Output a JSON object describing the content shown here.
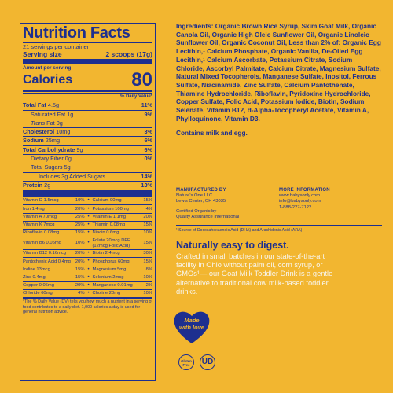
{
  "nutrition": {
    "title": "Nutrition Facts",
    "servings": "21 servings per container",
    "serving_size_label": "Serving size",
    "serving_size_value": "2 scoops (17g)",
    "amount_per_serving": "Amount per serving",
    "calories_label": "Calories",
    "calories_value": "80",
    "dv_header": "% Daily Value*",
    "rows": [
      {
        "label": "Total Fat",
        "amount": "4.5g",
        "dv": "11%",
        "bold": true,
        "indent": 0
      },
      {
        "label": "Saturated Fat",
        "amount": "1g",
        "dv": "9%",
        "bold": false,
        "indent": 1
      },
      {
        "label": "Trans",
        "amount": "Fat 0g",
        "dv": "",
        "bold": false,
        "indent": 1,
        "italic": true
      },
      {
        "label": "Cholesterol",
        "amount": "10mg",
        "dv": "3%",
        "bold": true,
        "indent": 0
      },
      {
        "label": "Sodium",
        "amount": "25mg",
        "dv": "6%",
        "bold": true,
        "indent": 0
      },
      {
        "label": "Total Carbohydrate",
        "amount": "9g",
        "dv": "6%",
        "bold": true,
        "indent": 0
      },
      {
        "label": "Dietary Fiber",
        "amount": "0g",
        "dv": "0%",
        "bold": false,
        "indent": 1
      },
      {
        "label": "Total Sugars",
        "amount": "5g",
        "dv": "",
        "bold": false,
        "indent": 1
      },
      {
        "label": "Includes 3g Added Sugars",
        "amount": "",
        "dv": "14%",
        "bold": false,
        "indent": 2
      },
      {
        "label": "Protein",
        "amount": "2g",
        "dv": "13%",
        "bold": true,
        "indent": 0
      }
    ],
    "vitamins": [
      {
        "l": "Vitamin D 1.5mcg",
        "lv": "10%",
        "r": "Calcium 90mg",
        "rv": "15%"
      },
      {
        "l": "Iron 1.4mg",
        "lv": "20%",
        "r": "Potassium 100mg",
        "rv": "4%"
      },
      {
        "l": "Vitamin A 70mcg",
        "lv": "25%",
        "r": "Vitamin E 1.1mg",
        "rv": "20%"
      },
      {
        "l": "Vitamin K 7mcg",
        "lv": "25%",
        "r": "Thiamin 0.08mg",
        "rv": "15%"
      },
      {
        "l": "Riboflavin 0.08mg",
        "lv": "15%",
        "r": "Niacin 0.6mg",
        "rv": "10%"
      },
      {
        "l": "Vitamin B6 0.05mg",
        "lv": "10%",
        "r": "Folate 20mcg DFE (12mcg Folic Acid)",
        "rv": "15%",
        "tall": true
      },
      {
        "l": "Vitamin B12 0.16mcg",
        "lv": "20%",
        "r": "Biotin 2.4mcg",
        "rv": "30%"
      },
      {
        "l": "Pantothenic Acid 0.4mg",
        "lv": "20%",
        "r": "Phosphorus 60mg",
        "rv": "15%"
      },
      {
        "l": "Iodine 13mcg",
        "lv": "15%",
        "r": "Magnesium 5mg",
        "rv": "8%"
      },
      {
        "l": "Zinc 0.4mg",
        "lv": "15%",
        "r": "Selenium 2mcg",
        "rv": "10%"
      },
      {
        "l": "Copper 0.06mg",
        "lv": "20%",
        "r": "Manganese 0.01mg",
        "rv": "2%"
      },
      {
        "l": "Chloride 60mg",
        "lv": "4%",
        "r": "Choline 20mg",
        "rv": "10%"
      }
    ],
    "footnote": "*The % Daily Value (DV) tells you how much a nutrient in a serving of food contributes to a daily diet. 1,000 calories a day is used for general nutrition advice."
  },
  "ingredients": "Ingredients: Organic Brown Rice Syrup, Skim Goat Milk, Organic Canola Oil, Organic High Oleic Sunflower Oil, Organic Linoleic Sunflower Oil, Organic Coconut Oil, Less than 2% of: Organic Egg Lecithin,¹ Calcium Phosphate, Organic Vanilla, De-Oiled Egg Lecithin,¹ Calcium Ascorbate, Potassium Citrate, Sodium Chloride, Ascorbyl Palmitate, Calcium Citrate, Magnesium Sulfate, Natural Mixed Tocopherols, Manganese Sulfate, Inositol, Ferrous Sulfate, Niacinamide, Zinc Sulfate, Calcium Pantothenate, Thiamine Hydrochloride, Riboflavin, Pyridoxine Hydrochloride, Copper Sulfate, Folic Acid, Potassium Iodide, Biotin, Sodium Selenate, Vitamin B12, d-Alpha-Tocopheryl Acetate, Vitamin A, Phylloquinone, Vitamin D3.",
  "contains": "Contains milk and egg.",
  "manufacturer": {
    "heading": "MANUFACTURED BY",
    "line1": "Nature's One LLC",
    "line2": "Lewis Center, OH 43035",
    "cert1": "Certified Organic by",
    "cert2": "Quality Assurance International"
  },
  "more_info": {
    "heading": "MORE INFORMATION",
    "web": "www.babysonly.com",
    "email": "info@babysonly.com",
    "phone": "1-888-227-7122"
  },
  "source_note": "¹ Source of Docosahexaenoic Acid (DHA) and Arachidonic Acid (ARA)",
  "headline": "Naturally easy to digest.",
  "body": "Crafted in small batches in our state-of-the-art facility in Ohio without palm oil, corn syrup, or GMOs¹— our Goat Milk Toddler Drink is a gentle alternative to traditional cow milk-based toddler drinks.",
  "badges": {
    "heart_line1": "Made",
    "heart_line2": "with love",
    "gluten_line1": "Gluten",
    "gluten_line2": "Free",
    "kosher": "UD"
  },
  "colors": {
    "background": "#f2b630",
    "ink": "#1d2f8f",
    "light_text": "#f7f5ee"
  }
}
